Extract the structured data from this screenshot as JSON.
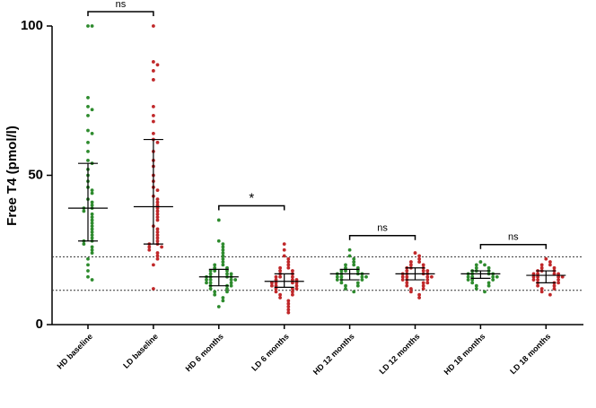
{
  "chart_data": {
    "type": "strip",
    "y_label": "Free T4 (pmol/l)",
    "ylim": [
      0,
      100
    ],
    "yticks": [
      0,
      50,
      100
    ],
    "reference_lines": [
      22.7,
      11.5
    ],
    "groups": [
      {
        "name": "HD baseline",
        "color": "#2e8b2e",
        "median": 39,
        "q1": 28,
        "q3": 54,
        "values": [
          100,
          100,
          76,
          73,
          72,
          70,
          65,
          64,
          61,
          58,
          55,
          54,
          52,
          50,
          48,
          46,
          45,
          44,
          42,
          41,
          40,
          39,
          39,
          38,
          37,
          36,
          35,
          34,
          33,
          32,
          31,
          30,
          29,
          28,
          28,
          27,
          26,
          25,
          24,
          22,
          20,
          18,
          16,
          15
        ]
      },
      {
        "name": "LD baseline",
        "color": "#c0282a",
        "median": 39.5,
        "q1": 27,
        "q3": 62,
        "values": [
          100,
          88,
          87,
          85,
          82,
          73,
          70,
          68,
          64,
          62,
          61,
          58,
          55,
          53,
          50,
          48,
          46,
          45,
          43,
          42,
          41,
          40,
          39,
          38,
          37,
          36,
          35,
          33,
          32,
          31,
          30,
          29,
          28,
          27,
          27,
          26,
          26,
          25,
          24,
          23,
          22,
          20,
          12
        ]
      },
      {
        "name": "HD 6 months",
        "color": "#2e8b2e",
        "median": 16,
        "q1": 13,
        "q3": 18.5,
        "values": [
          35,
          28,
          27,
          26,
          25,
          24,
          23,
          22,
          21,
          20,
          20,
          19,
          19,
          18,
          18,
          18,
          17,
          17,
          17,
          16,
          16,
          16,
          16,
          15,
          15,
          15,
          15,
          14,
          14,
          14,
          13,
          13,
          13,
          12,
          12,
          11,
          11,
          10,
          9,
          8,
          6
        ]
      },
      {
        "name": "LD 6 months",
        "color": "#c0282a",
        "median": 14.5,
        "q1": 12.5,
        "q3": 17,
        "values": [
          27,
          25,
          23,
          22,
          21,
          20,
          19,
          19,
          18,
          18,
          17,
          17,
          16,
          16,
          16,
          15,
          15,
          15,
          14,
          14,
          14,
          14,
          13,
          13,
          13,
          12,
          12,
          12,
          11,
          11,
          10,
          10,
          9,
          8,
          7,
          6,
          5,
          4
        ]
      },
      {
        "name": "HD 12 months",
        "color": "#2e8b2e",
        "median": 17,
        "q1": 15,
        "q3": 18.5,
        "values": [
          25,
          23,
          22,
          21,
          20,
          20,
          19,
          19,
          18,
          18,
          18,
          17,
          17,
          17,
          17,
          16,
          16,
          16,
          16,
          15,
          15,
          15,
          14,
          14,
          13,
          13,
          12,
          11
        ]
      },
      {
        "name": "LD 12 months",
        "color": "#c0282a",
        "median": 17,
        "q1": 15,
        "q3": 19,
        "values": [
          24,
          23,
          22,
          21,
          21,
          20,
          20,
          19,
          19,
          19,
          18,
          18,
          18,
          17,
          17,
          17,
          17,
          16,
          16,
          16,
          16,
          15,
          15,
          15,
          14,
          14,
          14,
          13,
          13,
          12,
          12,
          11,
          10,
          9
        ]
      },
      {
        "name": "HD 18 months",
        "color": "#2e8b2e",
        "median": 17,
        "q1": 15.5,
        "q3": 18,
        "values": [
          21,
          20,
          20,
          19,
          19,
          18,
          18,
          18,
          17,
          17,
          17,
          17,
          16,
          16,
          16,
          16,
          15,
          15,
          15,
          14,
          14,
          13,
          13,
          12,
          11
        ]
      },
      {
        "name": "LD 18 months",
        "color": "#c0282a",
        "median": 16.5,
        "q1": 14,
        "q3": 18,
        "values": [
          22,
          21,
          20,
          20,
          19,
          19,
          18,
          18,
          18,
          17,
          17,
          17,
          17,
          16,
          16,
          16,
          16,
          15,
          15,
          15,
          14,
          14,
          14,
          13,
          13,
          12,
          12,
          11,
          10
        ]
      }
    ],
    "annotations": [
      {
        "label": "ns",
        "between": [
          0,
          1
        ]
      },
      {
        "label": "*",
        "between": [
          2,
          3
        ]
      },
      {
        "label": "ns",
        "between": [
          4,
          5
        ]
      },
      {
        "label": "ns",
        "between": [
          6,
          7
        ]
      }
    ]
  }
}
